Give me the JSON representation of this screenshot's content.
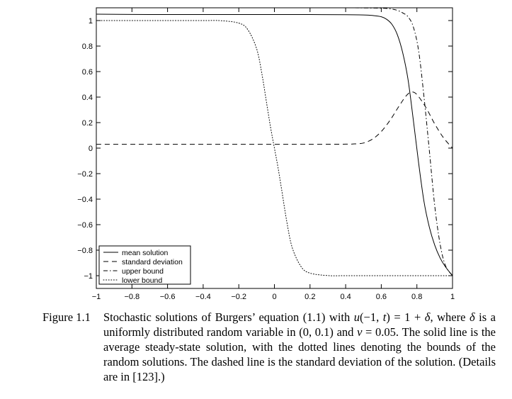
{
  "chart_data": {
    "type": "line",
    "title": "",
    "xlabel": "",
    "ylabel": "",
    "xlim": [
      -1,
      1
    ],
    "ylim": [
      -1.1,
      1.1
    ],
    "xticks": [
      -1,
      -0.8,
      -0.6,
      -0.4,
      -0.2,
      0,
      0.2,
      0.4,
      0.6,
      0.8,
      1
    ],
    "xtick_labels": [
      "−1",
      "−0.8",
      "−0.6",
      "−0.4",
      "−0.2",
      "0",
      "0.2",
      "0.4",
      "0.6",
      "0.8",
      "1"
    ],
    "yticks": [
      -1,
      -0.8,
      -0.6,
      -0.4,
      -0.2,
      0,
      0.2,
      0.4,
      0.6,
      0.8,
      1
    ],
    "ytick_labels": [
      "−1",
      "−0.8",
      "−0.6",
      "−0.4",
      "−0.2",
      "0",
      "0.2",
      "0.4",
      "0.6",
      "0.8",
      "1"
    ],
    "grid": false,
    "legend_position": "bottom-left",
    "series": [
      {
        "name": "mean solution",
        "style": "solid",
        "x": [
          -1,
          -0.8,
          -0.6,
          -0.4,
          -0.2,
          0,
          0.2,
          0.4,
          0.5,
          0.55,
          0.6,
          0.63,
          0.66,
          0.69,
          0.72,
          0.75,
          0.78,
          0.81,
          0.84,
          0.87,
          0.9,
          0.93,
          0.96,
          1.0
        ],
        "y": [
          1.05,
          1.048,
          1.047,
          1.047,
          1.047,
          1.047,
          1.047,
          1.046,
          1.044,
          1.04,
          1.03,
          1.01,
          0.97,
          0.89,
          0.75,
          0.54,
          0.22,
          -0.12,
          -0.42,
          -0.62,
          -0.76,
          -0.86,
          -0.93,
          -1.0
        ]
      },
      {
        "name": "standard deviation",
        "style": "dashed",
        "x": [
          -1,
          -0.8,
          -0.6,
          -0.4,
          -0.2,
          0,
          0.2,
          0.4,
          0.45,
          0.5,
          0.55,
          0.6,
          0.65,
          0.7,
          0.74,
          0.77,
          0.8,
          0.85,
          0.9,
          0.95,
          1.0
        ],
        "y": [
          0.03,
          0.03,
          0.03,
          0.03,
          0.03,
          0.03,
          0.03,
          0.031,
          0.033,
          0.04,
          0.07,
          0.13,
          0.22,
          0.33,
          0.41,
          0.44,
          0.42,
          0.32,
          0.19,
          0.08,
          0.0
        ]
      },
      {
        "name": "upper bound",
        "style": "dash-dot",
        "x": [
          -1,
          -0.6,
          -0.2,
          0,
          0.2,
          0.4,
          0.5,
          0.55,
          0.6,
          0.63,
          0.66,
          0.69,
          0.72,
          0.75,
          0.78,
          0.81,
          0.84,
          0.87,
          0.9,
          0.93,
          0.96,
          1.0
        ],
        "y": [
          1.1,
          1.1,
          1.1,
          1.1,
          1.1,
          1.1,
          1.099,
          1.098,
          1.097,
          1.095,
          1.09,
          1.08,
          1.06,
          1.03,
          0.95,
          0.76,
          0.4,
          -0.02,
          -0.45,
          -0.75,
          -0.92,
          -1.0
        ]
      },
      {
        "name": "lower bound",
        "style": "dotted",
        "x": [
          -1,
          -0.8,
          -0.6,
          -0.4,
          -0.3,
          -0.2,
          -0.15,
          -0.1,
          -0.07,
          -0.04,
          -0.02,
          0,
          0.02,
          0.04,
          0.07,
          0.1,
          0.15,
          0.2,
          0.3,
          0.4,
          0.6,
          0.8,
          1.0
        ],
        "y": [
          1.0,
          1.0,
          1.0,
          1.0,
          0.999,
          0.98,
          0.93,
          0.78,
          0.58,
          0.32,
          0.15,
          0.0,
          -0.15,
          -0.32,
          -0.58,
          -0.78,
          -0.93,
          -0.98,
          -0.999,
          -1.0,
          -1.0,
          -1.0,
          -1.0
        ]
      }
    ]
  },
  "caption": {
    "label": "Figure 1.1",
    "segments": [
      {
        "text": "Stochastic solutions of Burgers’ equation (1.1) with ",
        "italic": false
      },
      {
        "text": "u",
        "italic": true
      },
      {
        "text": "(−1, ",
        "italic": false
      },
      {
        "text": "t",
        "italic": true
      },
      {
        "text": ") = 1 + ",
        "italic": false
      },
      {
        "text": "δ",
        "italic": true
      },
      {
        "text": ", where ",
        "italic": false
      },
      {
        "text": "δ",
        "italic": true
      },
      {
        "text": " is a uniformly distributed random variable in (0, 0.1) and ",
        "italic": false
      },
      {
        "text": "ν",
        "italic": true
      },
      {
        "text": " = 0.05. The solid line is the average steady-state solution, with the dotted lines denoting the bounds of the random solutions. The dashed line is the standard deviation of the solution. (Details are in [123].)",
        "italic": false
      }
    ]
  }
}
